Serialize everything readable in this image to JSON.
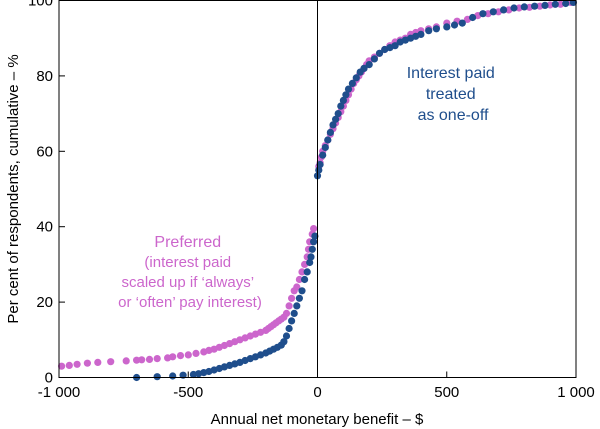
{
  "chart_data": {
    "type": "scatter",
    "title": "",
    "xlabel": "Annual net monetary benefit – $",
    "ylabel": "Per cent of respondents, cumulative – %",
    "xlim": [
      -1000,
      1000
    ],
    "ylim": [
      0,
      100
    ],
    "x_ticks": [
      -1000,
      -500,
      0,
      500,
      1000
    ],
    "x_tick_labels": [
      "-1 000",
      "-500",
      "0",
      "500",
      "1 000"
    ],
    "y_ticks": [
      0,
      20,
      40,
      60,
      80,
      100
    ],
    "y_tick_labels": [
      "0",
      "20",
      "40",
      "60",
      "80",
      "100"
    ],
    "grid": false,
    "annotations": [
      {
        "series": "preferred",
        "lines": [
          "Preferred",
          "(interest paid",
          "scaled up if ‘always’",
          "or ‘often’ pay interest)"
        ],
        "anchor": [
          -600,
          36
        ]
      },
      {
        "series": "one_off",
        "lines": [
          "Interest paid",
          "treated",
          "as one-off"
        ],
        "anchor": [
          520,
          84
        ]
      }
    ],
    "series": [
      {
        "id": "preferred",
        "color": "#cc66cc",
        "points": [
          [
            -990,
            3
          ],
          [
            -960,
            3.2
          ],
          [
            -930,
            3.5
          ],
          [
            -890,
            3.8
          ],
          [
            -850,
            4
          ],
          [
            -800,
            4.2
          ],
          [
            -740,
            4.4
          ],
          [
            -700,
            4.6
          ],
          [
            -680,
            4.7
          ],
          [
            -650,
            4.8
          ],
          [
            -620,
            5
          ],
          [
            -580,
            5.2
          ],
          [
            -560,
            5.5
          ],
          [
            -530,
            5.8
          ],
          [
            -500,
            6
          ],
          [
            -470,
            6.4
          ],
          [
            -440,
            6.8
          ],
          [
            -420,
            7.2
          ],
          [
            -400,
            7.5
          ],
          [
            -380,
            8
          ],
          [
            -360,
            8.5
          ],
          [
            -340,
            9
          ],
          [
            -320,
            9.5
          ],
          [
            -300,
            10
          ],
          [
            -280,
            10.5
          ],
          [
            -260,
            11
          ],
          [
            -240,
            11.5
          ],
          [
            -220,
            12
          ],
          [
            -200,
            12.5
          ],
          [
            -190,
            13
          ],
          [
            -180,
            13.5
          ],
          [
            -170,
            14
          ],
          [
            -160,
            14.5
          ],
          [
            -150,
            15
          ],
          [
            -140,
            15.5
          ],
          [
            -130,
            16
          ],
          [
            -120,
            17
          ],
          [
            -110,
            19
          ],
          [
            -100,
            21
          ],
          [
            -90,
            23
          ],
          [
            -80,
            24
          ],
          [
            -70,
            26
          ],
          [
            -60,
            28
          ],
          [
            -50,
            30
          ],
          [
            -40,
            32
          ],
          [
            -35,
            34
          ],
          [
            -30,
            36
          ],
          [
            -20,
            38
          ],
          [
            -15,
            39.5
          ],
          [
            5,
            56
          ],
          [
            10,
            57
          ],
          [
            15,
            58.5
          ],
          [
            20,
            60
          ],
          [
            30,
            61.5
          ],
          [
            40,
            63
          ],
          [
            50,
            64.5
          ],
          [
            60,
            66
          ],
          [
            70,
            67.5
          ],
          [
            80,
            69
          ],
          [
            90,
            70.5
          ],
          [
            100,
            72
          ],
          [
            110,
            73.5
          ],
          [
            120,
            75
          ],
          [
            130,
            76.5
          ],
          [
            140,
            78
          ],
          [
            150,
            79
          ],
          [
            160,
            80
          ],
          [
            170,
            81
          ],
          [
            180,
            82
          ],
          [
            190,
            83
          ],
          [
            200,
            84
          ],
          [
            220,
            85
          ],
          [
            240,
            86
          ],
          [
            260,
            87
          ],
          [
            280,
            88
          ],
          [
            300,
            89
          ],
          [
            320,
            89.5
          ],
          [
            340,
            90
          ],
          [
            360,
            91
          ],
          [
            380,
            91.5
          ],
          [
            400,
            92
          ],
          [
            430,
            92.5
          ],
          [
            460,
            93
          ],
          [
            500,
            94
          ],
          [
            540,
            94.5
          ],
          [
            580,
            95
          ],
          [
            620,
            96
          ],
          [
            660,
            96.5
          ],
          [
            700,
            97
          ],
          [
            740,
            97.5
          ],
          [
            780,
            98
          ],
          [
            820,
            98.2
          ],
          [
            860,
            98.5
          ],
          [
            900,
            98.8
          ],
          [
            940,
            99
          ],
          [
            980,
            99.5
          ]
        ]
      },
      {
        "id": "one_off",
        "color": "#1f4e8c",
        "points": [
          [
            -700,
            0
          ],
          [
            -620,
            0.2
          ],
          [
            -560,
            0.4
          ],
          [
            -520,
            0.6
          ],
          [
            -480,
            0.8
          ],
          [
            -460,
            1
          ],
          [
            -440,
            1.3
          ],
          [
            -420,
            1.6
          ],
          [
            -400,
            2
          ],
          [
            -380,
            2.4
          ],
          [
            -360,
            2.8
          ],
          [
            -340,
            3.2
          ],
          [
            -320,
            3.6
          ],
          [
            -300,
            4
          ],
          [
            -280,
            4.5
          ],
          [
            -260,
            5
          ],
          [
            -240,
            5.5
          ],
          [
            -220,
            6
          ],
          [
            -200,
            6.5
          ],
          [
            -185,
            7
          ],
          [
            -170,
            7.5
          ],
          [
            -155,
            8
          ],
          [
            -140,
            8.6
          ],
          [
            -130,
            9.5
          ],
          [
            -120,
            11
          ],
          [
            -110,
            13
          ],
          [
            -100,
            15
          ],
          [
            -90,
            17
          ],
          [
            -80,
            19
          ],
          [
            -70,
            21
          ],
          [
            -60,
            23
          ],
          [
            -50,
            26
          ],
          [
            -40,
            28
          ],
          [
            -30,
            30.5
          ],
          [
            -25,
            32
          ],
          [
            -20,
            34
          ],
          [
            -15,
            36
          ],
          [
            -10,
            37.5
          ],
          [
            0,
            53.5
          ],
          [
            5,
            55
          ],
          [
            10,
            56.5
          ],
          [
            20,
            59
          ],
          [
            30,
            61
          ],
          [
            40,
            63
          ],
          [
            50,
            65
          ],
          [
            60,
            67
          ],
          [
            70,
            68.5
          ],
          [
            80,
            70
          ],
          [
            90,
            72
          ],
          [
            100,
            73.5
          ],
          [
            110,
            75
          ],
          [
            120,
            76.5
          ],
          [
            135,
            78
          ],
          [
            150,
            79.5
          ],
          [
            165,
            81
          ],
          [
            180,
            82
          ],
          [
            200,
            83
          ],
          [
            220,
            84.5
          ],
          [
            240,
            86
          ],
          [
            260,
            87
          ],
          [
            280,
            87.5
          ],
          [
            300,
            88
          ],
          [
            320,
            89
          ],
          [
            340,
            89.5
          ],
          [
            360,
            90
          ],
          [
            380,
            90.5
          ],
          [
            400,
            91
          ],
          [
            430,
            92
          ],
          [
            460,
            92.5
          ],
          [
            500,
            93
          ],
          [
            530,
            93.5
          ],
          [
            560,
            94
          ],
          [
            600,
            95.5
          ],
          [
            640,
            96.5
          ],
          [
            680,
            97
          ],
          [
            720,
            97.5
          ],
          [
            760,
            98
          ],
          [
            800,
            98.3
          ],
          [
            840,
            98.5
          ],
          [
            880,
            98.7
          ],
          [
            920,
            99
          ],
          [
            960,
            99.2
          ],
          [
            990,
            99.5
          ]
        ]
      }
    ]
  }
}
